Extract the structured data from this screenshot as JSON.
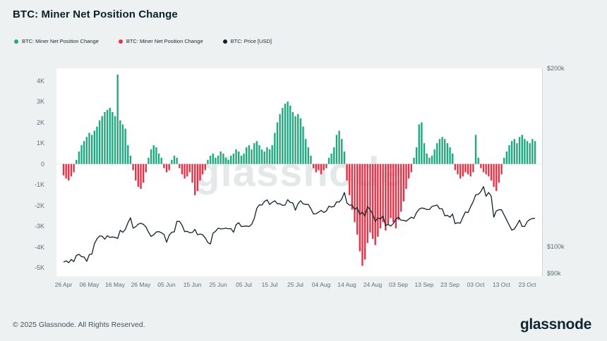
{
  "page": {
    "title": "BTC: Miner Net Position Change",
    "footer_copyright": "© 2025 Glassnode. All Rights Reserved.",
    "brand_logo": "glassnode",
    "watermark": "glassnode"
  },
  "legend": {
    "items": [
      {
        "label": "BTC: Miner Net Position Change",
        "color": "#22a87e"
      },
      {
        "label": "BTC: Miner Net Position Change",
        "color": "#e23449"
      },
      {
        "label": "BTC: Price [USD]",
        "color": "#10222c"
      }
    ]
  },
  "chart_data": {
    "type": "bar",
    "title": "BTC: Miner Net Position Change",
    "grid": "off",
    "legend_position": "top-left",
    "left_axis": {
      "unit": "BTC",
      "ylim": [
        -5400,
        4600
      ],
      "ticks": [
        {
          "label": "4K",
          "value": 4000
        },
        {
          "label": "3K",
          "value": 3000
        },
        {
          "label": "2K",
          "value": 2000
        },
        {
          "label": "1K",
          "value": 1000
        },
        {
          "label": "0",
          "value": 0
        },
        {
          "label": "-1K",
          "value": -1000
        },
        {
          "label": "-2K",
          "value": -2000
        },
        {
          "label": "-3K",
          "value": -3000
        },
        {
          "label": "-4K",
          "value": -4000
        },
        {
          "label": "-5K",
          "value": -5000
        }
      ]
    },
    "right_axis": {
      "unit": "USD",
      "scale": "log",
      "ylim": [
        89000,
        200000
      ],
      "ticks": [
        {
          "label": "$200k",
          "value": 200000
        },
        {
          "label": "$100k",
          "value": 100000
        },
        {
          "label": "$90k",
          "value": 90000
        }
      ]
    },
    "x_axis": {
      "n_points": 184,
      "ticks": [
        {
          "label": "26 Apr",
          "index": 0
        },
        {
          "label": "06 May",
          "index": 10
        },
        {
          "label": "16 May",
          "index": 20
        },
        {
          "label": "26 May",
          "index": 30
        },
        {
          "label": "05 Jun",
          "index": 40
        },
        {
          "label": "15 Jun",
          "index": 50
        },
        {
          "label": "25 Jun",
          "index": 60
        },
        {
          "label": "05 Jul",
          "index": 70
        },
        {
          "label": "15 Jul",
          "index": 80
        },
        {
          "label": "25 Jul",
          "index": 90
        },
        {
          "label": "04 Aug",
          "index": 100
        },
        {
          "label": "14 Aug",
          "index": 110
        },
        {
          "label": "24 Aug",
          "index": 120
        },
        {
          "label": "03 Sep",
          "index": 130
        },
        {
          "label": "13 Sep",
          "index": 140
        },
        {
          "label": "23 Sep",
          "index": 150
        },
        {
          "label": "03 Oct",
          "index": 160
        },
        {
          "label": "13 Oct",
          "index": 170
        },
        {
          "label": "23 Oct",
          "index": 180
        }
      ]
    },
    "series": [
      {
        "name": "BTC: Miner Net Position Change",
        "type": "bar",
        "axis": "left",
        "color_positive": "#22a87e",
        "color_negative": "#e23449",
        "values": [
          -550,
          -700,
          -800,
          -600,
          -400,
          200,
          600,
          900,
          1100,
          1300,
          1500,
          1400,
          1600,
          1800,
          2100,
          2300,
          2500,
          2600,
          2700,
          2500,
          2300,
          4300,
          2100,
          1900,
          1700,
          900,
          400,
          -300,
          -800,
          -1100,
          -1200,
          -900,
          -400,
          300,
          700,
          900,
          800,
          500,
          300,
          -200,
          -400,
          -300,
          200,
          400,
          300,
          -200,
          -500,
          -700,
          -600,
          -400,
          -900,
          -1500,
          -1300,
          -800,
          -500,
          -300,
          200,
          400,
          500,
          300,
          400,
          600,
          500,
          300,
          200,
          400,
          500,
          700,
          600,
          400,
          500,
          800,
          900,
          700,
          1000,
          1100,
          900,
          700,
          600,
          800,
          700,
          900,
          1500,
          2000,
          2400,
          2700,
          2900,
          3000,
          2800,
          2500,
          2300,
          2400,
          2200,
          1800,
          1200,
          800,
          400,
          -200,
          -400,
          -300,
          -500,
          -300,
          -200,
          300,
          500,
          800,
          1400,
          1600,
          1200,
          600,
          -800,
          -1500,
          -2200,
          -2800,
          -3400,
          -4200,
          -4900,
          -4600,
          -3800,
          -3300,
          -3600,
          -3900,
          -3500,
          -3100,
          -2800,
          -3200,
          -2900,
          -2600,
          -2800,
          -3100,
          -2700,
          -2300,
          -1800,
          -1200,
          -700,
          -400,
          300,
          800,
          1900,
          2000,
          1000,
          500,
          300,
          400,
          700,
          1000,
          1200,
          1300,
          1200,
          1000,
          800,
          500,
          -300,
          -500,
          -700,
          -600,
          -400,
          -500,
          -600,
          -400,
          1400,
          300,
          -200,
          -400,
          -500,
          -600,
          -800,
          -1100,
          -1300,
          -900,
          -500,
          300,
          600,
          900,
          1100,
          1200,
          1000,
          1300,
          1400,
          1200,
          1100,
          1000,
          1200,
          1100
        ]
      },
      {
        "name": "BTC: Price [USD]",
        "type": "line",
        "axis": "right",
        "color": "#10222c",
        "values": [
          94000,
          94500,
          93800,
          95000,
          94200,
          96500,
          96900,
          96000,
          95900,
          94300,
          96800,
          97000,
          101000,
          103000,
          104100,
          104000,
          102800,
          104200,
          103500,
          103700,
          103500,
          103100,
          106400,
          105600,
          106800,
          109600,
          111700,
          107300,
          107900,
          109000,
          109400,
          108900,
          107800,
          105600,
          103900,
          104600,
          105700,
          105900,
          105400,
          104700,
          101600,
          104400,
          105600,
          105800,
          110200,
          110200,
          108600,
          105900,
          106000,
          105400,
          105500,
          106800,
          104600,
          104900,
          104600,
          103300,
          101500,
          100900,
          105200,
          106000,
          107300,
          107000,
          107100,
          107300,
          107100,
          107100,
          105600,
          108800,
          109600,
          108000,
          108100,
          108200,
          108000,
          108900,
          111300,
          115900,
          117500,
          117400,
          119100,
          119800,
          117700,
          118700,
          119400,
          118000,
          118000,
          117300,
          117400,
          119900,
          118600,
          118400,
          115100,
          118000,
          119400,
          118000,
          117700,
          117700,
          115800,
          113400,
          113500,
          114200,
          115000,
          114100,
          114700,
          116900,
          116500,
          116800,
          118900,
          118800,
          120200,
          123300,
          118400,
          117400,
          117400,
          115400,
          116300,
          113100,
          114300,
          112400,
          116800,
          115300,
          113500,
          110100,
          111700,
          111200,
          112500,
          108400,
          108900,
          108200,
          109250,
          111200,
          112000,
          110700,
          110650,
          110250,
          111170,
          112000,
          111500,
          114000,
          115500,
          116100,
          115900,
          115400,
          115400,
          116800,
          117100,
          117400,
          115700,
          115700,
          112600,
          112800,
          112000,
          113400,
          109200,
          109600,
          109400,
          112000,
          114300,
          114000,
          116600,
          119000,
          122200,
          122400,
          123800,
          126200,
          121500,
          123300,
          121600,
          112000,
          114800,
          115300,
          115300,
          113000,
          110800,
          108600,
          106500,
          107000,
          108700,
          110700,
          108100,
          108000,
          110100,
          111000,
          111400,
          111500
        ]
      }
    ]
  }
}
